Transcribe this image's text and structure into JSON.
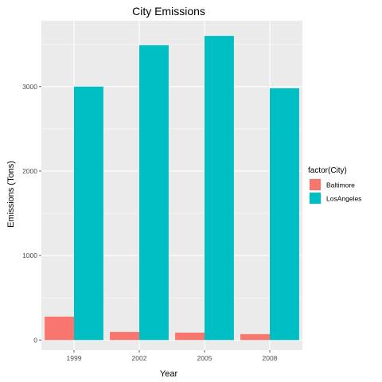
{
  "chart_data": {
    "type": "bar",
    "title": "City Emissions",
    "xlabel": "Year",
    "ylabel": "Emissions (Tons)",
    "categories": [
      "1999",
      "2002",
      "2005",
      "2008"
    ],
    "series": [
      {
        "name": "Baltimore",
        "values": [
          277,
          96,
          88,
          70
        ],
        "color": "#F8766D"
      },
      {
        "name": "LosAngeles",
        "values": [
          3000,
          3490,
          3600,
          2980
        ],
        "color": "#00BFC4"
      }
    ],
    "ylim": [
      -120,
      3780
    ],
    "yticks": [
      0,
      1000,
      2000,
      3000
    ],
    "ytick_labels": [
      "0",
      "1000",
      "2000",
      "3000"
    ],
    "grid": true,
    "panel_background": "#EBEBEB",
    "grid_color": "#FFFFFF",
    "legend": {
      "title": "factor(City)",
      "position": "right"
    }
  }
}
